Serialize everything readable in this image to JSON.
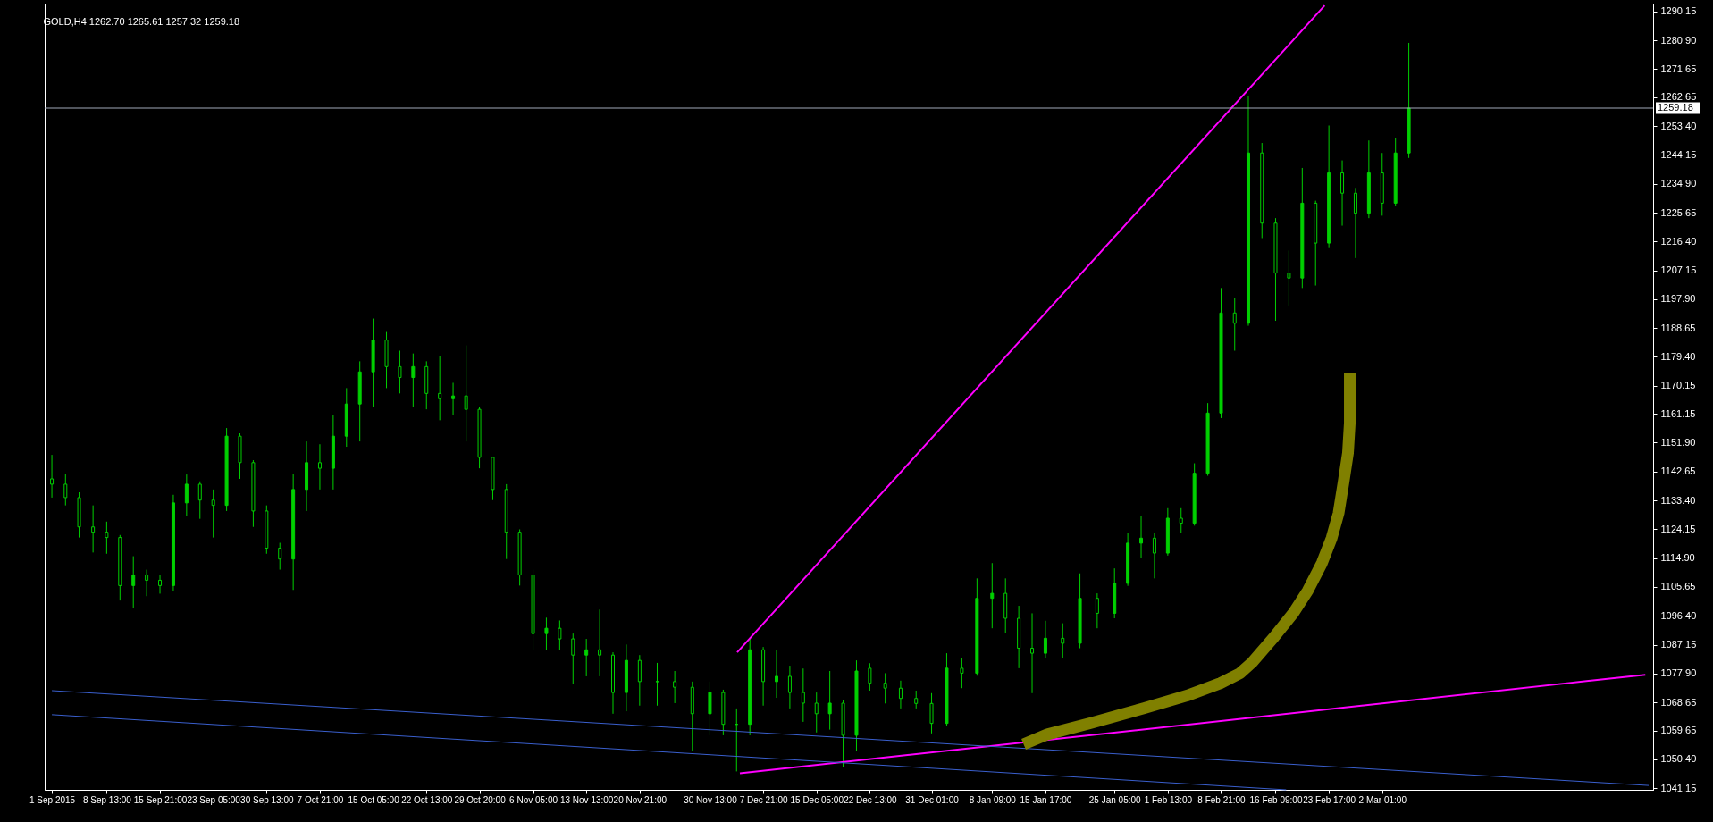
{
  "chart_data": {
    "type": "candlestick",
    "title": "GOLD,H4 1262.70 1265.61 1257.32 1259.18",
    "color": "#00d000",
    "x": [
      "2015-09-01T00:00",
      "2015-09-02T21:00",
      "2015-09-04T18:00",
      "2015-09-06T16:00",
      "2015-09-08T13:00",
      "2015-09-10T09:00",
      "2015-09-12T05:00",
      "2015-09-14T01:00",
      "2015-09-15T21:00",
      "2015-09-17T17:00",
      "2015-09-19T13:00",
      "2015-09-21T09:00",
      "2015-09-23T05:00",
      "2015-09-25T01:00",
      "2015-09-26T21:00",
      "2015-09-28T17:00",
      "2015-09-30T13:00",
      "2015-10-02T09:00",
      "2015-10-04T05:00",
      "2015-10-06T01:00",
      "2015-10-07T21:00",
      "2015-10-09T17:00",
      "2015-10-11T13:00",
      "2015-10-13T09:00",
      "2015-10-15T05:00",
      "2015-10-17T01:00",
      "2015-10-18T21:00",
      "2015-10-20T17:00",
      "2015-10-22T13:00",
      "2015-10-24T09:00",
      "2015-10-26T05:00",
      "2015-10-28T00:00",
      "2015-10-29T20:00",
      "2015-10-31T16:00",
      "2015-11-02T13:00",
      "2015-11-04T09:00",
      "2015-11-06T05:00",
      "2015-11-08T01:00",
      "2015-11-09T21:00",
      "2015-11-11T17:00",
      "2015-11-13T13:00",
      "2015-11-15T09:00",
      "2015-11-17T05:00",
      "2015-11-19T01:00",
      "2015-11-20T21:00",
      "2015-11-23T07:00",
      "2015-11-25T17:00",
      "2015-11-28T03:00",
      "2015-11-30T13:00",
      "2015-12-02T09:00",
      "2015-12-04T05:00",
      "2015-12-06T01:00",
      "2015-12-07T21:00",
      "2015-12-09T17:00",
      "2015-12-11T13:00",
      "2015-12-13T09:00",
      "2015-12-15T05:00",
      "2015-12-17T01:00",
      "2015-12-18T21:00",
      "2015-12-20T17:00",
      "2015-12-22T13:00",
      "2015-12-24T16:00",
      "2015-12-26T19:00",
      "2015-12-28T22:00",
      "2015-12-31T01:00",
      "2016-01-02T03:00",
      "2016-01-04T05:00",
      "2016-01-06T07:00",
      "2016-01-08T09:00",
      "2016-01-10T05:00",
      "2016-01-12T01:00",
      "2016-01-13T21:00",
      "2016-01-15T17:00",
      "2016-01-18T02:00",
      "2016-01-20T11:00",
      "2016-01-22T20:00",
      "2016-01-25T05:00",
      "2016-01-27T01:00",
      "2016-01-28T21:00",
      "2016-01-30T17:00",
      "2016-02-01T13:00",
      "2016-02-03T09:00",
      "2016-02-05T05:00",
      "2016-02-07T01:00",
      "2016-02-08T21:00",
      "2016-02-10T18:00",
      "2016-02-12T15:00",
      "2016-02-14T12:00",
      "2016-02-16T09:00",
      "2016-02-18T05:00",
      "2016-02-20T01:00",
      "2016-02-21T21:00",
      "2016-02-23T17:00",
      "2016-02-25T13:00",
      "2016-02-27T09:00",
      "2016-02-29T05:00",
      "2016-03-02T01:00",
      "2016-03-03T21:00",
      "2016-03-05T17:00"
    ],
    "ohlc": [
      [
        1140.3,
        1148.0,
        1134.3,
        1138.6
      ],
      [
        1138.6,
        1142.0,
        1131.8,
        1134.3
      ],
      [
        1134.3,
        1136.0,
        1121.5,
        1124.9
      ],
      [
        1124.9,
        1131.8,
        1116.7,
        1123.2
      ],
      [
        1123.2,
        1126.6,
        1116.3,
        1121.5
      ],
      [
        1121.5,
        1122.3,
        1101.3,
        1106.1
      ],
      [
        1106.1,
        1115.5,
        1098.9,
        1109.5
      ],
      [
        1109.5,
        1111.2,
        1102.7,
        1107.8
      ],
      [
        1107.8,
        1109.5,
        1103.5,
        1106.1
      ],
      [
        1106.1,
        1135.2,
        1104.4,
        1132.6
      ],
      [
        1132.6,
        1141.7,
        1128.3,
        1138.6
      ],
      [
        1138.6,
        1139.5,
        1127.5,
        1133.5
      ],
      [
        1133.5,
        1136.9,
        1121.5,
        1131.8
      ],
      [
        1131.8,
        1156.6,
        1130.0,
        1154.0
      ],
      [
        1154.0,
        1154.9,
        1140.3,
        1145.5
      ],
      [
        1145.5,
        1146.3,
        1124.9,
        1130.0
      ],
      [
        1130.0,
        1131.8,
        1116.3,
        1118.1
      ],
      [
        1118.1,
        1119.8,
        1111.2,
        1114.6
      ],
      [
        1114.6,
        1142.0,
        1104.7,
        1136.9
      ],
      [
        1136.9,
        1152.3,
        1130.0,
        1145.5
      ],
      [
        1145.5,
        1151.4,
        1136.9,
        1143.7
      ],
      [
        1143.7,
        1160.9,
        1136.9,
        1154.0
      ],
      [
        1154.0,
        1169.4,
        1150.6,
        1164.3
      ],
      [
        1164.3,
        1178.0,
        1152.3,
        1174.6
      ],
      [
        1174.6,
        1191.7,
        1163.4,
        1184.8
      ],
      [
        1184.8,
        1187.4,
        1169.4,
        1176.3
      ],
      [
        1176.3,
        1181.4,
        1167.7,
        1172.8
      ],
      [
        1172.8,
        1180.5,
        1163.4,
        1176.3
      ],
      [
        1176.3,
        1178.0,
        1162.6,
        1167.7
      ],
      [
        1167.7,
        1179.7,
        1159.1,
        1166.0
      ],
      [
        1166.0,
        1171.1,
        1160.9,
        1166.9
      ],
      [
        1166.9,
        1183.1,
        1152.3,
        1162.6
      ],
      [
        1162.6,
        1163.4,
        1143.7,
        1147.2
      ],
      [
        1147.2,
        1147.2,
        1133.5,
        1136.9
      ],
      [
        1136.9,
        1138.6,
        1114.6,
        1123.2
      ],
      [
        1123.2,
        1124.1,
        1106.1,
        1109.5
      ],
      [
        1109.5,
        1111.2,
        1085.5,
        1090.7
      ],
      [
        1090.7,
        1095.8,
        1085.5,
        1092.4
      ],
      [
        1092.4,
        1094.9,
        1085.5,
        1089.0
      ],
      [
        1089.0,
        1090.7,
        1074.4,
        1083.8
      ],
      [
        1083.8,
        1089.0,
        1077.0,
        1085.5
      ],
      [
        1085.5,
        1098.4,
        1077.0,
        1083.8
      ],
      [
        1083.8,
        1084.7,
        1065.0,
        1071.8
      ],
      [
        1071.8,
        1087.2,
        1065.8,
        1082.1
      ],
      [
        1082.1,
        1083.8,
        1067.6,
        1075.3
      ],
      [
        1075.3,
        1081.3,
        1067.6,
        1075.3
      ],
      [
        1075.3,
        1078.7,
        1068.4,
        1073.5
      ],
      [
        1073.5,
        1075.3,
        1053.0,
        1065.0
      ],
      [
        1065.0,
        1075.3,
        1058.1,
        1071.8
      ],
      [
        1071.8,
        1072.7,
        1058.1,
        1061.6
      ],
      [
        1061.6,
        1066.7,
        1046.5,
        1061.6
      ],
      [
        1061.6,
        1089.0,
        1058.1,
        1085.5
      ],
      [
        1085.5,
        1086.4,
        1067.6,
        1075.3
      ],
      [
        1075.3,
        1085.5,
        1070.1,
        1077.0
      ],
      [
        1077.0,
        1080.4,
        1066.7,
        1071.8
      ],
      [
        1071.8,
        1079.5,
        1062.4,
        1068.4
      ],
      [
        1068.4,
        1071.8,
        1059.0,
        1065.0
      ],
      [
        1065.0,
        1078.7,
        1059.9,
        1068.4
      ],
      [
        1068.4,
        1069.3,
        1047.9,
        1058.1
      ],
      [
        1058.1,
        1082.1,
        1053.0,
        1078.7
      ],
      [
        1079.6,
        1081.2,
        1072.4,
        1074.8
      ],
      [
        1074.8,
        1078.0,
        1068.3,
        1073.2
      ],
      [
        1073.2,
        1075.6,
        1066.7,
        1069.9
      ],
      [
        1069.9,
        1072.4,
        1066.7,
        1068.3
      ],
      [
        1068.3,
        1071.6,
        1058.7,
        1061.9
      ],
      [
        1061.9,
        1084.4,
        1061.1,
        1079.6
      ],
      [
        1079.6,
        1082.8,
        1073.2,
        1078.0
      ],
      [
        1078.0,
        1108.4,
        1077.2,
        1102.0
      ],
      [
        1102.0,
        1113.3,
        1092.4,
        1103.6
      ],
      [
        1103.6,
        1108.4,
        1090.8,
        1095.6
      ],
      [
        1095.6,
        1099.6,
        1079.6,
        1086.0
      ],
      [
        1086.0,
        1097.2,
        1071.6,
        1084.4
      ],
      [
        1084.4,
        1094.8,
        1082.8,
        1089.2
      ],
      [
        1089.2,
        1094.0,
        1082.8,
        1087.6
      ],
      [
        1087.6,
        1110.0,
        1086.0,
        1102.0
      ],
      [
        1102.0,
        1103.6,
        1092.4,
        1097.2
      ],
      [
        1097.2,
        1111.6,
        1095.6,
        1106.8
      ],
      [
        1106.8,
        1122.9,
        1106.0,
        1119.7
      ],
      [
        1119.7,
        1128.5,
        1114.9,
        1121.3
      ],
      [
        1121.3,
        1122.9,
        1108.4,
        1116.5
      ],
      [
        1116.5,
        1130.9,
        1115.7,
        1127.7
      ],
      [
        1127.7,
        1130.9,
        1122.9,
        1126.1
      ],
      [
        1126.1,
        1145.3,
        1125.3,
        1142.1
      ],
      [
        1142.1,
        1164.6,
        1141.3,
        1161.4
      ],
      [
        1161.4,
        1201.5,
        1159.8,
        1193.5
      ],
      [
        1193.5,
        1198.3,
        1181.4,
        1190.2
      ],
      [
        1190.2,
        1263.2,
        1189.4,
        1244.8
      ],
      [
        1244.8,
        1248.0,
        1217.5,
        1222.3
      ],
      [
        1222.3,
        1223.9,
        1191.0,
        1206.3
      ],
      [
        1206.3,
        1213.5,
        1195.9,
        1204.7
      ],
      [
        1204.7,
        1240.0,
        1201.5,
        1228.7
      ],
      [
        1228.7,
        1229.5,
        1202.3,
        1215.9
      ],
      [
        1215.9,
        1253.6,
        1214.3,
        1238.4
      ],
      [
        1238.4,
        1242.4,
        1221.5,
        1231.9
      ],
      [
        1231.9,
        1233.6,
        1211.1,
        1225.5
      ],
      [
        1225.5,
        1248.8,
        1223.9,
        1238.4
      ],
      [
        1238.4,
        1244.8,
        1224.7,
        1228.7
      ],
      [
        1228.7,
        1249.6,
        1227.9,
        1244.8
      ],
      [
        1244.8,
        1280.1,
        1243.2,
        1259.18
      ]
    ],
    "series": [
      {
        "type": "line",
        "color": "#ff00ff",
        "x": [
          "2015-12-04T07:00",
          "2016-02-23T03:00"
        ],
        "values": [
          1084.7,
          1292.1
        ]
      },
      {
        "type": "line",
        "color": "#ff00ff",
        "x": [
          "2015-12-04T16:00",
          "2016-04-07T06:00"
        ],
        "values": [
          1045.9,
          1077.5
        ]
      },
      {
        "type": "line",
        "color": "#3a5fcd",
        "x": [
          "2015-09-01T00:00",
          "2016-04-07T17:00"
        ],
        "values": [
          1072.4,
          1042.0
        ]
      },
      {
        "type": "line",
        "color": "#3a5fcd",
        "x": [
          "2015-09-01T00:00",
          "2016-02-17T20:00"
        ],
        "values": [
          1064.7,
          1040.6
        ]
      },
      {
        "type": "line",
        "color": "#808000",
        "x": [
          "2016-01-12T17:00",
          "2016-01-16T00:00",
          "2016-01-21T23:00",
          "2016-01-29T08:00",
          "2016-02-04T04:00",
          "2016-02-08T19:00",
          "2016-02-11T12:00",
          "2016-02-13T04:00",
          "2016-02-16T04:00",
          "2016-02-18T19:00",
          "2016-02-20T19:00",
          "2016-02-22T18:00",
          "2016-02-24T02:00",
          "2016-02-25T01:00",
          "2016-02-25T17:00",
          "2016-02-26T08:00",
          "2016-02-26T14:00",
          "2016-02-26T14:00"
        ],
        "values": [
          1055.2,
          1058.4,
          1062.0,
          1066.8,
          1070.8,
          1074.8,
          1078.0,
          1081.5,
          1089.6,
          1097.2,
          1104.4,
          1113.3,
          1121.3,
          1129.3,
          1139.0,
          1148.6,
          1158.2,
          1174.2
        ]
      }
    ],
    "ref_lines": [
      {
        "axis": "y",
        "value": 1259.18,
        "label": "1259.18",
        "color": "#a0a8b8"
      }
    ],
    "xlim": [
      "2015-08-31T15:00",
      "2016-04-07T17:00"
    ],
    "xticks": [
      {
        "value": "2015-09-01T00:00",
        "label": "1 Sep 2015"
      },
      {
        "value": "2015-09-08T13:00",
        "label": "8 Sep 13:00"
      },
      {
        "value": "2015-09-15T21:00",
        "label": "15 Sep 21:00"
      },
      {
        "value": "2015-09-23T05:00",
        "label": "23 Sep 05:00"
      },
      {
        "value": "2015-09-30T13:00",
        "label": "30 Sep 13:00"
      },
      {
        "value": "2015-10-07T21:00",
        "label": "7 Oct 21:00"
      },
      {
        "value": "2015-10-15T05:00",
        "label": "15 Oct 05:00"
      },
      {
        "value": "2015-10-22T13:00",
        "label": "22 Oct 13:00"
      },
      {
        "value": "2015-10-29T20:00",
        "label": "29 Oct 20:00"
      },
      {
        "value": "2015-11-06T05:00",
        "label": "6 Nov 05:00"
      },
      {
        "value": "2015-11-13T13:00",
        "label": "13 Nov 13:00"
      },
      {
        "value": "2015-11-20T21:00",
        "label": "20 Nov 21:00"
      },
      {
        "value": "2015-11-30T13:00",
        "label": "30 Nov 13:00"
      },
      {
        "value": "2015-12-07T21:00",
        "label": "7 Dec 21:00"
      },
      {
        "value": "2015-12-15T05:00",
        "label": "15 Dec 05:00"
      },
      {
        "value": "2015-12-22T13:00",
        "label": "22 Dec 13:00"
      },
      {
        "value": "2015-12-31T01:00",
        "label": "31 Dec 01:00"
      },
      {
        "value": "2016-01-08T09:00",
        "label": "8 Jan 09:00"
      },
      {
        "value": "2016-01-15T17:00",
        "label": "15 Jan 17:00"
      },
      {
        "value": "2016-01-25T05:00",
        "label": "25 Jan 05:00"
      },
      {
        "value": "2016-02-01T13:00",
        "label": "1 Feb 13:00"
      },
      {
        "value": "2016-02-08T21:00",
        "label": "8 Feb 21:00"
      },
      {
        "value": "2016-02-16T09:00",
        "label": "16 Feb 09:00"
      },
      {
        "value": "2016-02-23T17:00",
        "label": "23 Feb 17:00"
      },
      {
        "value": "2016-03-02T01:00",
        "label": "2 Mar 01:00"
      }
    ],
    "ylim": [
      1040.6,
      1292.7
    ],
    "yticks": [
      1041.15,
      {
        "value": 1050.4,
        "label": "1050.40"
      },
      1059.65,
      1068.65,
      {
        "value": 1077.9,
        "label": "1077.90"
      },
      1087.15,
      {
        "value": 1096.4,
        "label": "1096.40"
      },
      1105.65,
      {
        "value": 1114.9,
        "label": "1114.90"
      },
      1124.15,
      {
        "value": 1133.4,
        "label": "1133.40"
      },
      1142.65,
      {
        "value": 1151.9,
        "label": "1151.90"
      },
      1161.15,
      1170.15,
      {
        "value": 1179.4,
        "label": "1179.40"
      },
      1188.65,
      {
        "value": 1197.9,
        "label": "1197.90"
      },
      1207.15,
      {
        "value": 1216.4,
        "label": "1216.40"
      },
      1225.65,
      {
        "value": 1234.9,
        "label": "1234.90"
      },
      1244.15,
      {
        "value": 1253.4,
        "label": "1253.40"
      },
      1262.65,
      1271.65,
      {
        "value": 1280.9,
        "label": "1280.90"
      },
      1290.15
    ]
  }
}
